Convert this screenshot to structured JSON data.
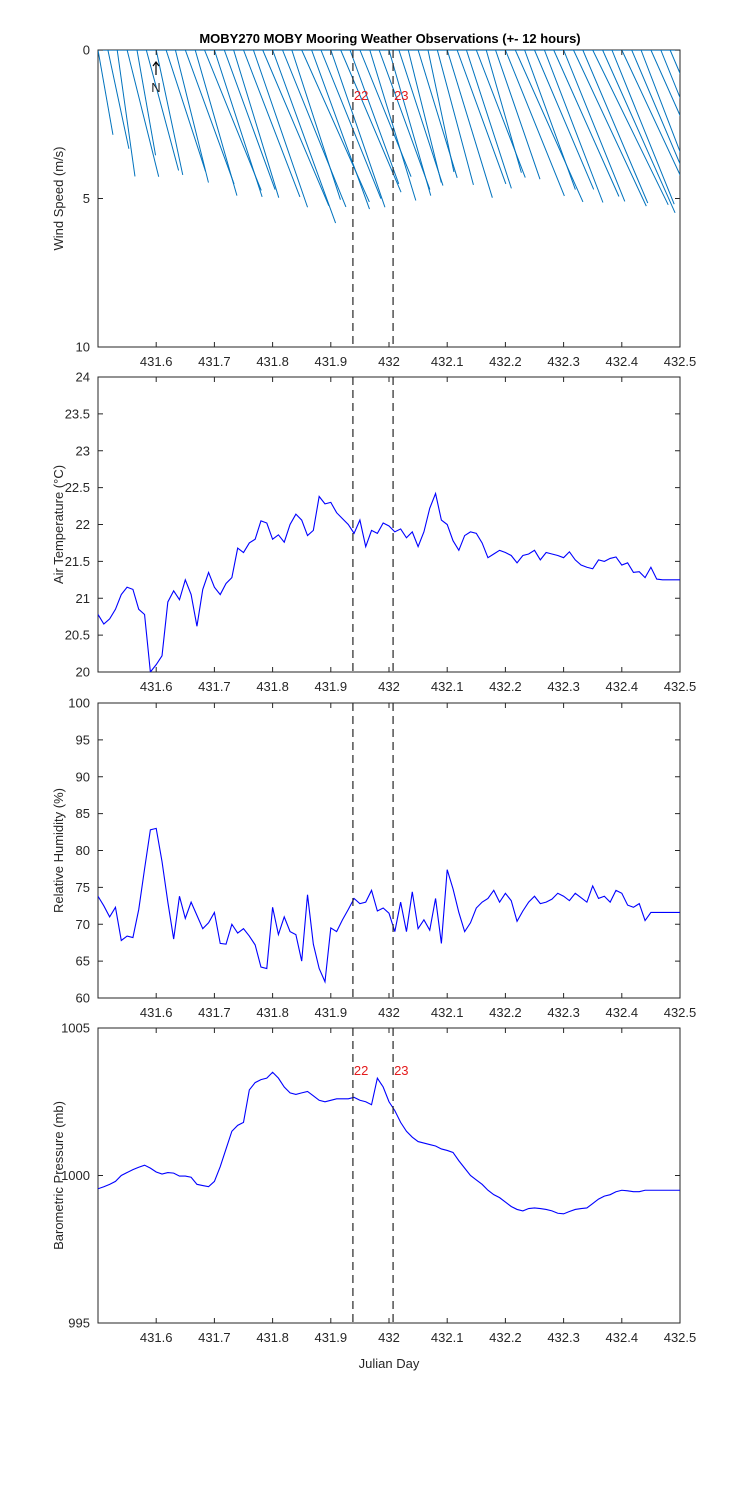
{
  "title": "MOBY270 MOBY Mooring Weather Observations (+- 12 hours)",
  "xlabel": "Julian Day",
  "north_label": "N",
  "colors": {
    "line": "#0000ff",
    "wind": "#0072bd",
    "marker_text": "#e41a1c",
    "axes": "#262626"
  },
  "x_range": [
    431.5,
    432.5
  ],
  "x_ticks": [
    "431.6",
    "431.7",
    "431.8",
    "431.9",
    "432",
    "432.1",
    "432.2",
    "432.3",
    "432.4",
    "432.5"
  ],
  "markers": [
    {
      "x": 431.938,
      "label": "22"
    },
    {
      "x": 432.007,
      "label": "23"
    }
  ],
  "chart_data": [
    {
      "type": "line",
      "subtype": "wind-stick",
      "ylabel": "Wind Speed (m/s)",
      "ylim": [
        0,
        10
      ],
      "y_reversed": true,
      "y_ticks": [
        "0",
        "5",
        "10"
      ],
      "x": [
        431.5,
        431.517,
        431.533,
        431.55,
        431.567,
        431.583,
        431.6,
        431.617,
        431.633,
        431.65,
        431.667,
        431.683,
        431.7,
        431.717,
        431.733,
        431.75,
        431.767,
        431.783,
        431.8,
        431.817,
        431.833,
        431.85,
        431.867,
        431.883,
        431.9,
        431.917,
        431.933,
        431.95,
        431.967,
        431.983,
        432.0,
        432.017,
        432.033,
        432.05,
        432.067,
        432.083,
        432.1,
        432.117,
        432.133,
        432.15,
        432.167,
        432.183,
        432.2,
        432.217,
        432.233,
        432.25,
        432.267,
        432.283,
        432.3,
        432.317,
        432.333,
        432.35,
        432.367,
        432.383,
        432.4,
        432.417,
        432.433,
        432.45,
        432.467,
        432.483,
        432.5
      ],
      "speed": [
        2.9,
        3.4,
        4.3,
        4.4,
        3.6,
        4.2,
        4.3,
        4.3,
        4.6,
        4.8,
        5.1,
        5.1,
        5.2,
        5.0,
        5.2,
        5.3,
        5.6,
        5.7,
        6.2,
        5.7,
        5.3,
        5.6,
        5.7,
        5.4,
        5.6,
        5.2,
        4.8,
        4.6,
        5.3,
        5.0,
        5.1,
        4.8,
        4.6,
        4.5,
        4.2,
        4.7,
        5.2,
        4.8,
        4.9,
        4.6,
        4.3,
        4.6,
        5.3,
        5.6,
        5.0,
        5.1,
        5.5,
        5.4,
        5.5,
        5.8,
        5.6,
        5.8,
        6.0,
        5.6,
        5.9,
        5.8,
        5.5,
        5.5,
        5.6,
        5.8,
        4.5
      ],
      "direction_deg": [
        170,
        168,
        172,
        166,
        170,
        165,
        168,
        162,
        166,
        160,
        164,
        158,
        162,
        160,
        163,
        159,
        161,
        157,
        160,
        158,
        162,
        156,
        160,
        158,
        161,
        157,
        160,
        158,
        163,
        160,
        164,
        162,
        166,
        163,
        168,
        165,
        163,
        160,
        162,
        159,
        164,
        161,
        158,
        156,
        160,
        157,
        159,
        156,
        158,
        155,
        157,
        154,
        156,
        158,
        155,
        157,
        159,
        156,
        158,
        157,
        172
      ]
    },
    {
      "type": "line",
      "ylabel": "Air Temperature (°C)",
      "ylim": [
        20,
        24
      ],
      "y_ticks": [
        "20",
        "20.5",
        "21",
        "21.5",
        "22",
        "22.5",
        "23",
        "23.5",
        "24"
      ],
      "x": [
        431.5,
        431.51,
        431.52,
        431.53,
        431.54,
        431.55,
        431.56,
        431.57,
        431.58,
        431.59,
        431.6,
        431.61,
        431.62,
        431.63,
        431.64,
        431.65,
        431.66,
        431.67,
        431.68,
        431.69,
        431.7,
        431.71,
        431.72,
        431.73,
        431.74,
        431.75,
        431.76,
        431.77,
        431.78,
        431.79,
        431.8,
        431.81,
        431.82,
        431.83,
        431.84,
        431.85,
        431.86,
        431.87,
        431.88,
        431.89,
        431.9,
        431.91,
        431.92,
        431.93,
        431.94,
        431.95,
        431.96,
        431.97,
        431.98,
        431.99,
        432.0,
        432.01,
        432.02,
        432.03,
        432.04,
        432.05,
        432.06,
        432.07,
        432.08,
        432.09,
        432.1,
        432.11,
        432.12,
        432.13,
        432.14,
        432.15,
        432.16,
        432.17,
        432.18,
        432.19,
        432.2,
        432.21,
        432.22,
        432.23,
        432.24,
        432.25,
        432.26,
        432.27,
        432.28,
        432.29,
        432.3,
        432.31,
        432.32,
        432.33,
        432.34,
        432.35,
        432.36,
        432.37,
        432.38,
        432.39,
        432.4,
        432.41,
        432.42,
        432.43,
        432.44,
        432.45,
        432.46,
        432.47,
        432.48,
        432.49,
        432.5
      ],
      "values": [
        20.78,
        20.65,
        20.72,
        20.85,
        21.05,
        21.15,
        21.12,
        20.85,
        20.78,
        20.0,
        20.1,
        20.22,
        20.95,
        21.1,
        20.98,
        21.25,
        21.05,
        20.62,
        21.12,
        21.35,
        21.15,
        21.05,
        21.2,
        21.28,
        21.68,
        21.62,
        21.75,
        21.8,
        22.05,
        22.02,
        21.8,
        21.86,
        21.76,
        22.0,
        22.14,
        22.06,
        21.85,
        21.92,
        22.38,
        22.28,
        22.3,
        22.16,
        22.08,
        22.0,
        21.88,
        22.06,
        21.7,
        21.92,
        21.88,
        22.02,
        21.98,
        21.9,
        21.94,
        21.82,
        21.9,
        21.7,
        21.9,
        22.22,
        22.42,
        22.06,
        22.0,
        21.78,
        21.65,
        21.85,
        21.9,
        21.88,
        21.75,
        21.55,
        21.6,
        21.65,
        21.62,
        21.58,
        21.48,
        21.58,
        21.6,
        21.65,
        21.52,
        21.62,
        21.6,
        21.58,
        21.55,
        21.63,
        21.52,
        21.45,
        21.42,
        21.4,
        21.52,
        21.5,
        21.54,
        21.56,
        21.45,
        21.48,
        21.35,
        21.36,
        21.28,
        21.42,
        21.26,
        21.25,
        21.25,
        21.25,
        21.25
      ]
    },
    {
      "type": "line",
      "ylabel": "Relative Humidity (%)",
      "ylim": [
        60,
        100
      ],
      "y_ticks": [
        "60",
        "65",
        "70",
        "75",
        "80",
        "85",
        "90",
        "95",
        "100"
      ],
      "x": [
        431.5,
        431.51,
        431.52,
        431.53,
        431.54,
        431.55,
        431.56,
        431.57,
        431.58,
        431.59,
        431.6,
        431.61,
        431.62,
        431.63,
        431.64,
        431.65,
        431.66,
        431.67,
        431.68,
        431.69,
        431.7,
        431.71,
        431.72,
        431.73,
        431.74,
        431.75,
        431.76,
        431.77,
        431.78,
        431.79,
        431.8,
        431.81,
        431.82,
        431.83,
        431.84,
        431.85,
        431.86,
        431.87,
        431.88,
        431.89,
        431.9,
        431.91,
        431.92,
        431.93,
        431.94,
        431.95,
        431.96,
        431.97,
        431.98,
        431.99,
        432.0,
        432.01,
        432.02,
        432.03,
        432.04,
        432.05,
        432.06,
        432.07,
        432.08,
        432.09,
        432.1,
        432.11,
        432.12,
        432.13,
        432.14,
        432.15,
        432.16,
        432.17,
        432.18,
        432.19,
        432.2,
        432.21,
        432.22,
        432.23,
        432.24,
        432.25,
        432.26,
        432.27,
        432.28,
        432.29,
        432.3,
        432.31,
        432.32,
        432.33,
        432.34,
        432.35,
        432.36,
        432.37,
        432.38,
        432.39,
        432.4,
        432.41,
        432.42,
        432.43,
        432.44,
        432.45,
        432.46,
        432.47,
        432.48,
        432.49,
        432.5
      ],
      "values": [
        73.8,
        72.5,
        71.0,
        72.3,
        67.8,
        68.4,
        68.2,
        72.0,
        77.5,
        82.8,
        83.0,
        78.5,
        73.0,
        68.0,
        73.8,
        70.8,
        73.0,
        71.2,
        69.4,
        70.2,
        71.6,
        67.4,
        67.3,
        70.0,
        68.8,
        69.4,
        68.4,
        67.2,
        64.2,
        64.0,
        72.3,
        68.6,
        71.0,
        69.0,
        68.6,
        65.0,
        74.0,
        67.3,
        64.0,
        62.2,
        69.5,
        69.0,
        70.6,
        72.0,
        73.5,
        72.8,
        73.0,
        74.6,
        71.8,
        72.2,
        71.5,
        69.0,
        73.0,
        69.0,
        74.4,
        69.4,
        70.6,
        69.2,
        73.5,
        67.4,
        77.4,
        74.8,
        71.6,
        69.0,
        70.2,
        72.2,
        73.0,
        73.5,
        74.6,
        73.0,
        74.2,
        73.2,
        70.4,
        71.8,
        73.0,
        73.8,
        72.8,
        73.0,
        73.4,
        74.2,
        73.8,
        73.2,
        74.2,
        73.6,
        73.0,
        75.2,
        73.5,
        73.8,
        73.0,
        74.6,
        74.2,
        72.6,
        72.3,
        72.8,
        70.5,
        71.6,
        71.6,
        71.6,
        71.6,
        71.6,
        71.6
      ]
    },
    {
      "type": "line",
      "ylabel": "Barometric Pressure (mb)",
      "ylim": [
        995,
        1005
      ],
      "y_ticks": [
        "995",
        "1000",
        "1005"
      ],
      "x": [
        431.5,
        431.51,
        431.52,
        431.53,
        431.54,
        431.55,
        431.56,
        431.57,
        431.58,
        431.59,
        431.6,
        431.61,
        431.62,
        431.63,
        431.64,
        431.65,
        431.66,
        431.67,
        431.68,
        431.69,
        431.7,
        431.71,
        431.72,
        431.73,
        431.74,
        431.75,
        431.76,
        431.77,
        431.78,
        431.79,
        431.8,
        431.81,
        431.82,
        431.83,
        431.84,
        431.85,
        431.86,
        431.87,
        431.88,
        431.89,
        431.9,
        431.91,
        431.92,
        431.93,
        431.94,
        431.95,
        431.96,
        431.97,
        431.98,
        431.99,
        432.0,
        432.01,
        432.02,
        432.03,
        432.04,
        432.05,
        432.06,
        432.07,
        432.08,
        432.09,
        432.1,
        432.11,
        432.12,
        432.13,
        432.14,
        432.15,
        432.16,
        432.17,
        432.18,
        432.19,
        432.2,
        432.21,
        432.22,
        432.23,
        432.24,
        432.25,
        432.26,
        432.27,
        432.28,
        432.29,
        432.3,
        432.31,
        432.32,
        432.33,
        432.34,
        432.35,
        432.36,
        432.37,
        432.38,
        432.39,
        432.4,
        432.41,
        432.42,
        432.43,
        432.44,
        432.45,
        432.46,
        432.47,
        432.48,
        432.49,
        432.5
      ],
      "values": [
        999.55,
        999.62,
        999.7,
        999.8,
        1000.0,
        1000.1,
        1000.2,
        1000.28,
        1000.35,
        1000.25,
        1000.12,
        1000.05,
        1000.1,
        1000.08,
        999.98,
        999.98,
        999.94,
        999.7,
        999.66,
        999.62,
        999.8,
        1000.3,
        1000.9,
        1001.5,
        1001.7,
        1001.8,
        1002.9,
        1003.15,
        1003.25,
        1003.3,
        1003.5,
        1003.3,
        1003.0,
        1002.8,
        1002.75,
        1002.8,
        1002.85,
        1002.7,
        1002.55,
        1002.5,
        1002.55,
        1002.6,
        1002.6,
        1002.6,
        1002.65,
        1002.55,
        1002.5,
        1002.4,
        1003.3,
        1003.0,
        1002.5,
        1002.2,
        1001.8,
        1001.5,
        1001.3,
        1001.15,
        1001.1,
        1001.05,
        1001.0,
        1000.9,
        1000.85,
        1000.78,
        1000.5,
        1000.25,
        1000.0,
        999.85,
        999.7,
        999.5,
        999.35,
        999.25,
        999.1,
        998.95,
        998.85,
        998.8,
        998.88,
        998.9,
        998.88,
        998.85,
        998.8,
        998.72,
        998.7,
        998.78,
        998.85,
        998.88,
        998.9,
        999.05,
        999.2,
        999.3,
        999.35,
        999.45,
        999.5,
        999.48,
        999.45,
        999.45,
        999.5,
        999.5,
        999.5,
        999.5,
        999.5,
        999.5,
        999.5
      ]
    }
  ]
}
